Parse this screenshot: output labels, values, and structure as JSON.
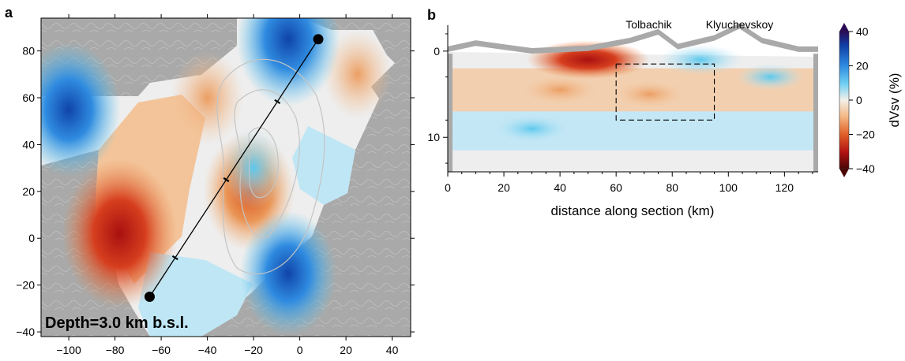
{
  "colors": {
    "gray_mask": "#a9a9a9",
    "contour": "#c4c4c4",
    "section_line": "#000000",
    "red_dark": "#8b0a0a",
    "red": "#d0341c",
    "orange": "#e98a4a",
    "peach": "#f3c49a",
    "neutral": "#eeeeee",
    "pale_blue": "#bfe6f5",
    "cyan": "#5cc8ee",
    "blue": "#2f7fd8",
    "dark_blue": "#0f44a8"
  },
  "chart_data": [
    {
      "type": "heatmap",
      "panel_label": "a",
      "annotation": "Depth=3.0 km b.s.l.",
      "xlim": [
        -112,
        48
      ],
      "ylim": [
        -42,
        94
      ],
      "x_ticks": [
        "−100",
        "−80",
        "−60",
        "−40",
        "−20",
        "0",
        "20",
        "40"
      ],
      "y_ticks": [
        "−40",
        "−20",
        "0",
        "20",
        "40",
        "60",
        "80"
      ],
      "x_tick_values": [
        -100,
        -80,
        -60,
        -40,
        -20,
        0,
        20,
        40
      ],
      "y_tick_values": [
        -40,
        -20,
        0,
        20,
        40,
        60,
        80
      ],
      "section_line": {
        "start": [
          -65,
          -25
        ],
        "end": [
          8,
          85
        ]
      },
      "section_ticks_km": [
        20,
        60,
        100
      ],
      "anomalies": [
        {
          "label": "low",
          "x": -78,
          "y": 2,
          "value": -30
        },
        {
          "label": "low",
          "x": -22,
          "y": 20,
          "value": -20
        },
        {
          "label": "low",
          "x": -40,
          "y": 60,
          "value": -12
        },
        {
          "label": "low",
          "x": 25,
          "y": 70,
          "value": -10
        },
        {
          "label": "high",
          "x": -100,
          "y": 55,
          "value": 25
        },
        {
          "label": "high",
          "x": -5,
          "y": 85,
          "value": 25
        },
        {
          "label": "high",
          "x": -5,
          "y": -15,
          "value": 22
        },
        {
          "label": "high",
          "x": -20,
          "y": 30,
          "value": 8
        }
      ]
    },
    {
      "type": "heatmap",
      "panel_label": "b",
      "xlabel": "distance along section (km)",
      "xlim": [
        0,
        132
      ],
      "ylim": [
        14,
        -3
      ],
      "x_ticks": [
        "0",
        "20",
        "40",
        "60",
        "80",
        "100",
        "120"
      ],
      "x_tick_values": [
        0,
        20,
        40,
        60,
        80,
        100,
        120
      ],
      "y_ticks": [
        "0",
        "10"
      ],
      "y_tick_values": [
        0,
        10
      ],
      "volcano_labels": [
        {
          "name": "Tolbachik",
          "x": 75
        },
        {
          "name": "Klyuchevskoy",
          "x": 104
        }
      ],
      "dashed_box": {
        "x": [
          60,
          95
        ],
        "y": [
          1.5,
          8
        ]
      },
      "anomalies": [
        {
          "x": 50,
          "y": 1,
          "value": -30
        },
        {
          "x": 40,
          "y": 4.5,
          "value": -10
        },
        {
          "x": 72,
          "y": 5,
          "value": -8
        },
        {
          "x": 90,
          "y": 1,
          "value": 15
        },
        {
          "x": 30,
          "y": 9,
          "value": 12
        },
        {
          "x": 115,
          "y": 3,
          "value": 8
        }
      ]
    },
    {
      "type": "colorbar",
      "label": "dVsv (%)",
      "range": [
        -40,
        40
      ],
      "ticks": [
        "40",
        "20",
        "0",
        "−20",
        "−40"
      ],
      "tick_values": [
        40,
        20,
        0,
        -20,
        -40
      ]
    }
  ]
}
